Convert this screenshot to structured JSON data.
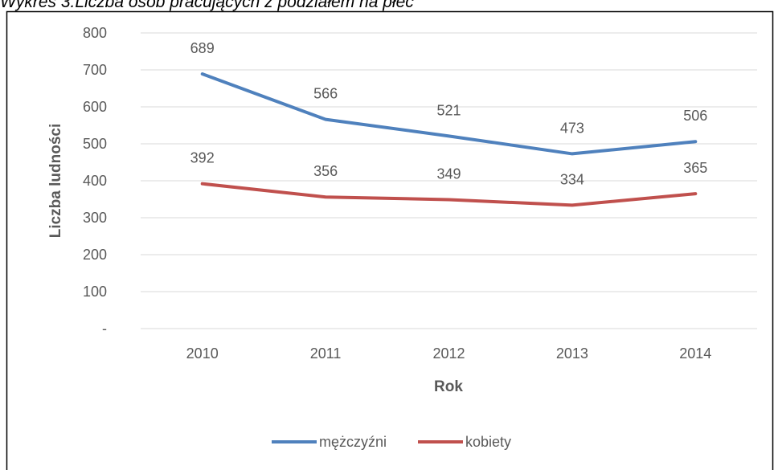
{
  "chart_data": {
    "type": "line",
    "title": "Wykres 3.Liczba osób pracujących z podziałem na płeć",
    "x_label": "Rok",
    "y_label": "Liczba ludności",
    "categories": [
      "2010",
      "2011",
      "2012",
      "2013",
      "2014"
    ],
    "series": [
      {
        "name": "mężczyźni",
        "color": "#4f81bd",
        "values": [
          689,
          566,
          521,
          473,
          506
        ]
      },
      {
        "name": "kobiety",
        "color": "#c0504d",
        "values": [
          392,
          356,
          349,
          334,
          365
        ]
      }
    ],
    "ylim": [
      0,
      800
    ],
    "yticks": [
      {
        "value": 0,
        "label": "-"
      },
      100,
      200,
      300,
      400,
      500,
      600,
      700,
      800
    ],
    "grid": true,
    "legend": "bottom"
  }
}
